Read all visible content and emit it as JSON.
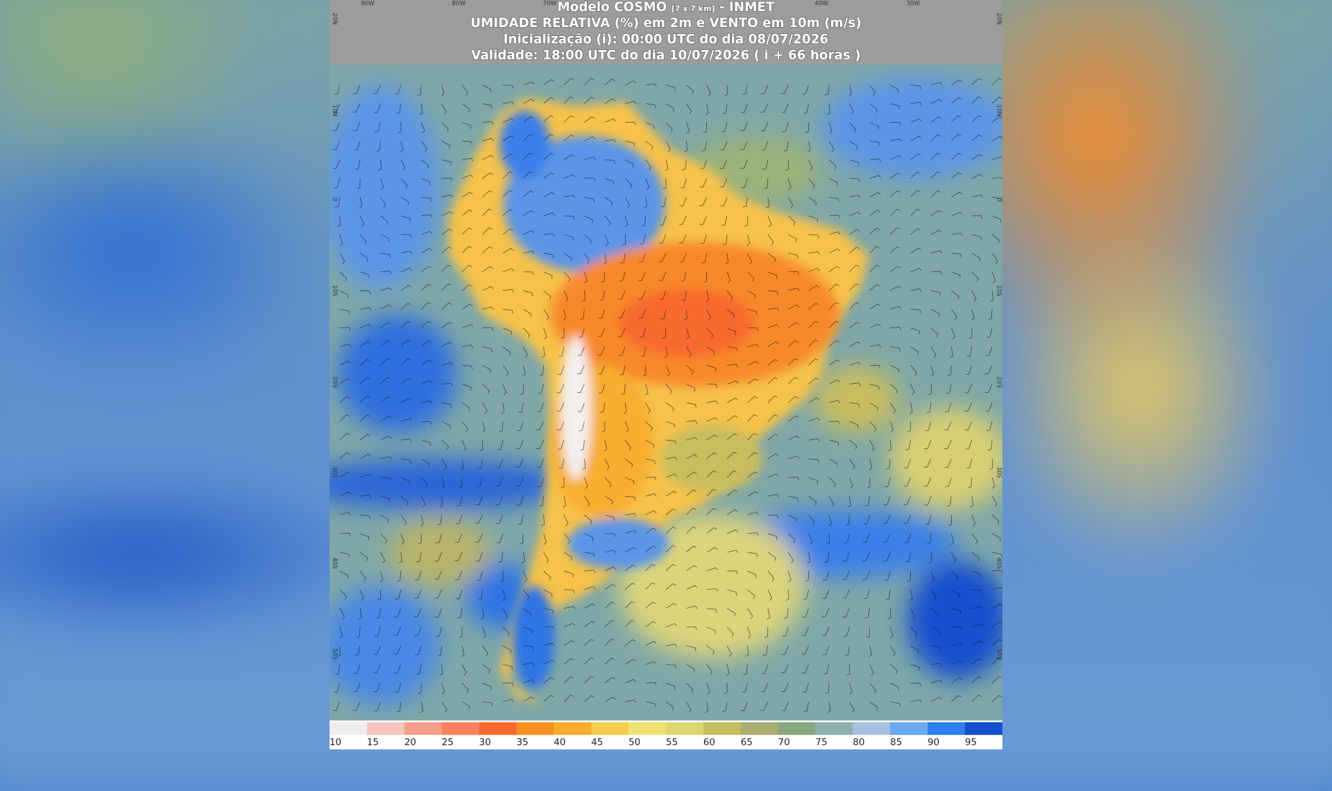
{
  "header": {
    "model": "Modelo COSMO",
    "resolution": "[7 x 7 km]",
    "source": "- INMET",
    "variable": "UMIDADE RELATIVA (%) em 2m e VENTO em 10m (m/s)",
    "initialization": "Inicialização (i): 00:00 UTC do dia 08/07/2026",
    "validity": "Validade: 18:00 UTC do dia 10/07/2026 ( i + 66 horas )"
  },
  "longitude_labels": [
    "90W",
    "80W",
    "70W",
    "40W",
    "30W"
  ],
  "latitude_labels": [
    "20N",
    "10N",
    "0",
    "10S",
    "20S",
    "30S",
    "40S",
    "50S"
  ],
  "colorbar": {
    "levels": [
      10,
      15,
      20,
      25,
      30,
      35,
      40,
      45,
      50,
      55,
      60,
      65,
      70,
      75,
      80,
      85,
      90,
      95
    ],
    "colors": [
      "#efedee",
      "#f5c6bd",
      "#f79f8c",
      "#f8825e",
      "#f8692f",
      "#f88f21",
      "#f8ad2d",
      "#f6cb4e",
      "#efe174",
      "#ddd670",
      "#c8bd5f",
      "#a9b071",
      "#88a781",
      "#8fb1b2",
      "#a6c0e2",
      "#6ea8f0",
      "#2f80ef",
      "#1450cf"
    ]
  }
}
